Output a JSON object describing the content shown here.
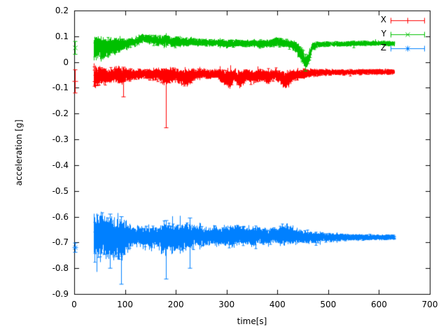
{
  "figure": {
    "background": "#ffffff",
    "axis_color": "#000000",
    "text_color": "#000000"
  },
  "chart_data": {
    "type": "line",
    "style": "errorbars",
    "title": "",
    "xlabel": "time[s]",
    "ylabel": "acceleration [g]",
    "xlim": [
      0,
      700
    ],
    "ylim": [
      -0.9,
      0.2
    ],
    "grid": false,
    "legend_position": "top-right",
    "xticks": {
      "values": [
        0,
        100,
        200,
        300,
        400,
        500,
        600,
        700
      ],
      "labels": [
        "0",
        "100",
        "200",
        "300",
        "400",
        "500",
        "600",
        "700"
      ]
    },
    "yticks": {
      "values": [
        0.2,
        0.1,
        0,
        -0.1,
        -0.2,
        -0.3,
        -0.4,
        -0.5,
        -0.6,
        -0.7,
        -0.8,
        -0.9
      ],
      "labels": [
        "0.2",
        "0.1",
        "0",
        "-0.1",
        "-0.2",
        "-0.3",
        "-0.4",
        "-0.5",
        "-0.6",
        "-0.7",
        "-0.8",
        "-0.9"
      ]
    },
    "series": [
      {
        "name": "X",
        "color": "#ff0000",
        "marker": "plus",
        "approx_mean": -0.05,
        "start_point": {
          "t": 2,
          "v": -0.075,
          "err": 0.045
        },
        "envelope": [
          [
            38,
            -0.06,
            0.055
          ],
          [
            50,
            -0.05,
            0.045
          ],
          [
            62,
            -0.052,
            0.035
          ],
          [
            75,
            -0.048,
            0.03
          ],
          [
            90,
            -0.05,
            0.038
          ],
          [
            105,
            -0.052,
            0.028
          ],
          [
            120,
            -0.048,
            0.022
          ],
          [
            135,
            -0.045,
            0.02
          ],
          [
            150,
            -0.05,
            0.025
          ],
          [
            165,
            -0.048,
            0.028
          ],
          [
            178,
            -0.055,
            0.04
          ],
          [
            183,
            -0.055,
            0.038
          ],
          [
            195,
            -0.05,
            0.03
          ],
          [
            210,
            -0.058,
            0.038
          ],
          [
            222,
            -0.06,
            0.04
          ],
          [
            235,
            -0.05,
            0.028
          ],
          [
            250,
            -0.045,
            0.02
          ],
          [
            265,
            -0.05,
            0.024
          ],
          [
            280,
            -0.045,
            0.02
          ],
          [
            295,
            -0.06,
            0.038
          ],
          [
            305,
            -0.068,
            0.042
          ],
          [
            315,
            -0.052,
            0.028
          ],
          [
            325,
            -0.068,
            0.042
          ],
          [
            338,
            -0.052,
            0.026
          ],
          [
            352,
            -0.058,
            0.03
          ],
          [
            368,
            -0.05,
            0.024
          ],
          [
            382,
            -0.06,
            0.036
          ],
          [
            395,
            -0.05,
            0.025
          ],
          [
            408,
            -0.06,
            0.035
          ],
          [
            418,
            -0.068,
            0.045
          ],
          [
            428,
            -0.055,
            0.028
          ],
          [
            440,
            -0.048,
            0.02
          ],
          [
            455,
            -0.045,
            0.022
          ],
          [
            468,
            -0.042,
            0.016
          ],
          [
            490,
            -0.04,
            0.013
          ],
          [
            530,
            -0.04,
            0.012
          ],
          [
            570,
            -0.038,
            0.012
          ],
          [
            600,
            -0.038,
            0.012
          ],
          [
            630,
            -0.038,
            0.012
          ]
        ],
        "spikes": [
          {
            "t": 181,
            "lo": -0.255,
            "hi": -0.045
          },
          {
            "t": 96,
            "lo": -0.135,
            "hi": -0.02
          }
        ]
      },
      {
        "name": "Y",
        "color": "#00c000",
        "marker": "cross",
        "approx_mean": 0.07,
        "start_point": {
          "t": 2,
          "v": 0.055,
          "err": 0.025
        },
        "envelope": [
          [
            38,
            0.05,
            0.055
          ],
          [
            48,
            0.058,
            0.05
          ],
          [
            58,
            0.052,
            0.048
          ],
          [
            68,
            0.058,
            0.042
          ],
          [
            80,
            0.062,
            0.038
          ],
          [
            92,
            0.068,
            0.03
          ],
          [
            105,
            0.072,
            0.022
          ],
          [
            118,
            0.078,
            0.02
          ],
          [
            130,
            0.088,
            0.02
          ],
          [
            142,
            0.092,
            0.018
          ],
          [
            155,
            0.085,
            0.02
          ],
          [
            168,
            0.082,
            0.022
          ],
          [
            180,
            0.088,
            0.028
          ],
          [
            192,
            0.076,
            0.02
          ],
          [
            205,
            0.08,
            0.024
          ],
          [
            218,
            0.076,
            0.02
          ],
          [
            232,
            0.08,
            0.018
          ],
          [
            248,
            0.076,
            0.016
          ],
          [
            265,
            0.075,
            0.015
          ],
          [
            282,
            0.074,
            0.015
          ],
          [
            300,
            0.07,
            0.018
          ],
          [
            318,
            0.074,
            0.016
          ],
          [
            335,
            0.07,
            0.015
          ],
          [
            352,
            0.074,
            0.016
          ],
          [
            368,
            0.07,
            0.018
          ],
          [
            385,
            0.072,
            0.018
          ],
          [
            398,
            0.08,
            0.02
          ],
          [
            412,
            0.074,
            0.018
          ],
          [
            426,
            0.07,
            0.02
          ],
          [
            438,
            0.055,
            0.028
          ],
          [
            448,
            0.025,
            0.032
          ],
          [
            456,
            -0.002,
            0.025
          ],
          [
            462,
            0.02,
            0.03
          ],
          [
            468,
            0.058,
            0.02
          ],
          [
            478,
            0.068,
            0.013
          ],
          [
            500,
            0.07,
            0.012
          ],
          [
            530,
            0.07,
            0.011
          ],
          [
            570,
            0.072,
            0.011
          ],
          [
            600,
            0.072,
            0.011
          ],
          [
            630,
            0.072,
            0.011
          ]
        ],
        "spikes": [
          {
            "t": 455,
            "lo": -0.035,
            "hi": 0.03
          }
        ]
      },
      {
        "name": "Z",
        "color": "#0080ff",
        "marker": "asterisk",
        "approx_mean": -0.68,
        "start_point": {
          "t": 2,
          "v": -0.72,
          "err": 0.018
        },
        "envelope": [
          [
            38,
            -0.68,
            0.09
          ],
          [
            48,
            -0.682,
            0.095
          ],
          [
            58,
            -0.68,
            0.09
          ],
          [
            70,
            -0.678,
            0.082
          ],
          [
            82,
            -0.682,
            0.088
          ],
          [
            92,
            -0.685,
            0.095
          ],
          [
            100,
            -0.68,
            0.07
          ],
          [
            112,
            -0.678,
            0.052
          ],
          [
            125,
            -0.675,
            0.042
          ],
          [
            138,
            -0.678,
            0.045
          ],
          [
            152,
            -0.68,
            0.05
          ],
          [
            165,
            -0.678,
            0.046
          ],
          [
            178,
            -0.685,
            0.075
          ],
          [
            188,
            -0.68,
            0.06
          ],
          [
            200,
            -0.676,
            0.058
          ],
          [
            215,
            -0.68,
            0.062
          ],
          [
            228,
            -0.678,
            0.058
          ],
          [
            240,
            -0.675,
            0.048
          ],
          [
            255,
            -0.678,
            0.044
          ],
          [
            268,
            -0.674,
            0.04
          ],
          [
            282,
            -0.678,
            0.044
          ],
          [
            296,
            -0.674,
            0.04
          ],
          [
            310,
            -0.678,
            0.05
          ],
          [
            322,
            -0.67,
            0.044
          ],
          [
            336,
            -0.675,
            0.04
          ],
          [
            350,
            -0.678,
            0.044
          ],
          [
            364,
            -0.674,
            0.036
          ],
          [
            378,
            -0.678,
            0.04
          ],
          [
            392,
            -0.67,
            0.035
          ],
          [
            406,
            -0.675,
            0.04
          ],
          [
            418,
            -0.668,
            0.045
          ],
          [
            432,
            -0.674,
            0.036
          ],
          [
            446,
            -0.678,
            0.03
          ],
          [
            462,
            -0.678,
            0.026
          ],
          [
            478,
            -0.68,
            0.022
          ],
          [
            495,
            -0.68,
            0.019
          ],
          [
            515,
            -0.68,
            0.017
          ],
          [
            540,
            -0.68,
            0.015
          ],
          [
            565,
            -0.68,
            0.013
          ],
          [
            590,
            -0.68,
            0.012
          ],
          [
            615,
            -0.68,
            0.011
          ],
          [
            630,
            -0.68,
            0.011
          ]
        ],
        "spikes": [
          {
            "t": 70,
            "lo": -0.8,
            "hi": -0.59
          },
          {
            "t": 92,
            "lo": -0.862,
            "hi": -0.6
          },
          {
            "t": 180,
            "lo": -0.842,
            "hi": -0.615
          },
          {
            "t": 228,
            "lo": -0.8,
            "hi": -0.605
          }
        ]
      }
    ]
  }
}
